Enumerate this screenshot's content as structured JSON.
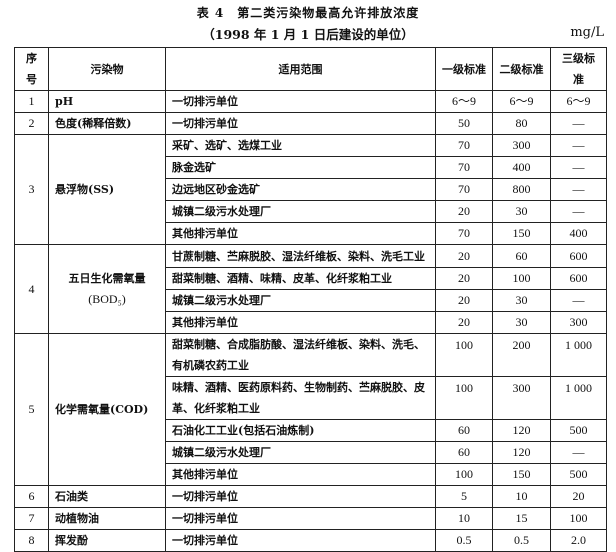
{
  "title": "表 4　第二类污染物最高允许排放浓度",
  "subtitle": "（1998 年 1 月 1 日后建设的单位）",
  "unit": "mg/L",
  "headers": [
    "序号",
    "污染物",
    "适用范围",
    "一级标准",
    "二级标准",
    "三级标准"
  ],
  "rows": [
    {
      "seq": "1",
      "pollutant": "pH",
      "items": [
        {
          "scope": "一切排污单位",
          "v1": "6～9",
          "v2": "6～9",
          "v3": "6～9"
        }
      ]
    },
    {
      "seq": "2",
      "pollutant": "色度(稀释倍数)",
      "items": [
        {
          "scope": "一切排污单位",
          "v1": "50",
          "v2": "80",
          "v3": "—"
        }
      ]
    },
    {
      "seq": "3",
      "pollutant": "悬浮物(SS)",
      "items": [
        {
          "scope": "采矿、选矿、选煤工业",
          "v1": "70",
          "v2": "300",
          "v3": "—"
        },
        {
          "scope": "脉金选矿",
          "v1": "70",
          "v2": "400",
          "v3": "—"
        },
        {
          "scope": "边远地区砂金选矿",
          "v1": "70",
          "v2": "800",
          "v3": "—"
        },
        {
          "scope": "城镇二级污水处理厂",
          "v1": "20",
          "v2": "30",
          "v3": "—"
        },
        {
          "scope": "其他排污单位",
          "v1": "70",
          "v2": "150",
          "v3": "400"
        }
      ]
    },
    {
      "seq": "4",
      "pollutant": "五日生化需氧量",
      "pollutant2": "(BOD₅)",
      "items": [
        {
          "scope": "甘蔗制糖、苎麻脱胶、湿法纤维板、染料、洗毛工业",
          "v1": "20",
          "v2": "60",
          "v3": "600"
        },
        {
          "scope": "甜菜制糖、酒精、味精、皮革、化纤浆粕工业",
          "v1": "20",
          "v2": "100",
          "v3": "600"
        },
        {
          "scope": "城镇二级污水处理厂",
          "v1": "20",
          "v2": "30",
          "v3": "—"
        },
        {
          "scope": "其他排污单位",
          "v1": "20",
          "v2": "30",
          "v3": "300"
        }
      ]
    },
    {
      "seq": "5",
      "pollutant": "化学需氧量(COD)",
      "items": [
        {
          "scope": "甜菜制糖、合成脂肪酸、湿法纤维板、染料、洗毛、有机磷农药工业",
          "v1": "100",
          "v2": "200",
          "v3": "1 000"
        },
        {
          "scope": "味精、酒精、医药原料药、生物制药、苎麻脱胶、皮革、化纤浆粕工业",
          "v1": "100",
          "v2": "300",
          "v3": "1 000"
        },
        {
          "scope": "石油化工工业(包括石油炼制)",
          "v1": "60",
          "v2": "120",
          "v3": "500"
        },
        {
          "scope": "城镇二级污水处理厂",
          "v1": "60",
          "v2": "120",
          "v3": "—"
        },
        {
          "scope": "其他排污单位",
          "v1": "100",
          "v2": "150",
          "v3": "500"
        }
      ]
    },
    {
      "seq": "6",
      "pollutant": "石油类",
      "items": [
        {
          "scope": "一切排污单位",
          "v1": "5",
          "v2": "10",
          "v3": "20"
        }
      ]
    },
    {
      "seq": "7",
      "pollutant": "动植物油",
      "items": [
        {
          "scope": "一切排污单位",
          "v1": "10",
          "v2": "15",
          "v3": "100"
        }
      ]
    },
    {
      "seq": "8",
      "pollutant": "挥发酚",
      "items": [
        {
          "scope": "一切排污单位",
          "v1": "0.5",
          "v2": "0.5",
          "v3": "2.0"
        }
      ]
    }
  ]
}
